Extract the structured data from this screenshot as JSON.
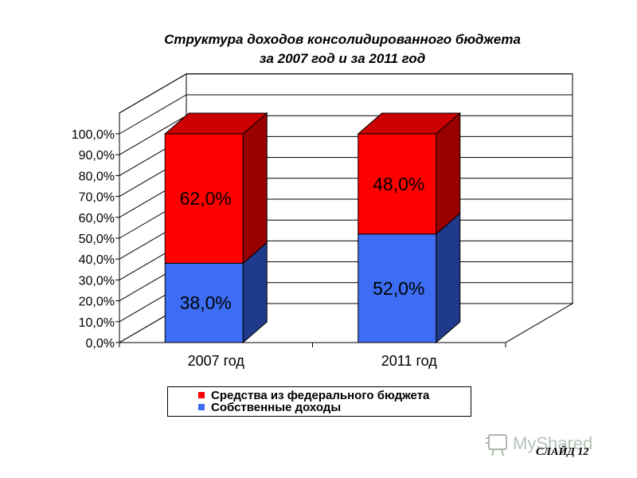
{
  "chart_data": {
    "type": "bar",
    "stacked": true,
    "three_d": true,
    "title": [
      "Структура доходов консолидированного бюджета",
      "за 2007 год  и  за 2011 год"
    ],
    "categories": [
      "2007 год",
      "2011 год"
    ],
    "series": [
      {
        "name": "Собственные доходы",
        "values": [
          38.0,
          52.0
        ],
        "labels": [
          "38,0%",
          "52,0%"
        ],
        "color": "#3d6df2"
      },
      {
        "name": "Средства из федерального бюджета",
        "values": [
          62.0,
          48.0
        ],
        "labels": [
          "62,0%",
          "48,0%"
        ],
        "color": "#ff0000"
      }
    ],
    "ylim": [
      0,
      100
    ],
    "yticks": [
      "0,0%",
      "10,0%",
      "20,0%",
      "30,0%",
      "40,0%",
      "50,0%",
      "60,0%",
      "70,0%",
      "80,0%",
      "90,0%",
      "100,0%"
    ],
    "grid": true,
    "legend_order": [
      "Средства из федерального бюджета",
      "Собственные доходы"
    ],
    "legend_position": "bottom"
  },
  "watermark": "MyShared",
  "slide_label": "СЛАЙД 12"
}
